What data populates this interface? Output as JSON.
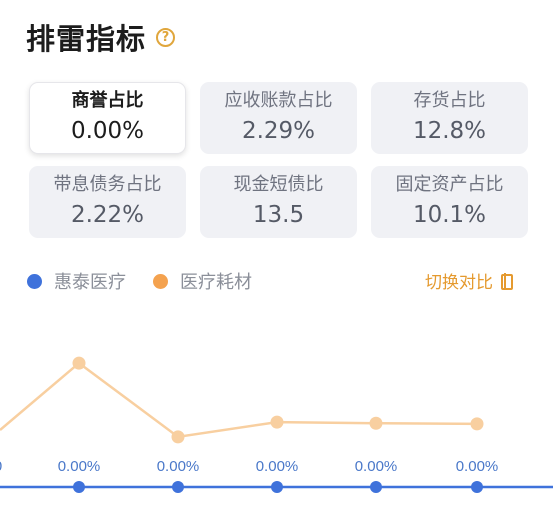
{
  "header": {
    "title": "排雷指标",
    "help_icon": "?"
  },
  "cards": [
    {
      "label": "商誉占比",
      "value": "0.00%"
    },
    {
      "label": "应收账款占比",
      "value": "2.29%"
    },
    {
      "label": "存货占比",
      "value": "12.8%"
    },
    {
      "label": "带息债务占比",
      "value": "2.22%"
    },
    {
      "label": "现金短债比",
      "value": "13.5"
    },
    {
      "label": "固定资产占比",
      "value": "10.1%"
    }
  ],
  "legend": [
    {
      "name": "惠泰医疗",
      "color": "#3f72db"
    },
    {
      "name": "医疗耗材",
      "color": "#f4a24f"
    }
  ],
  "switch_label": "切换对比",
  "chart_data": {
    "type": "line",
    "series": [
      {
        "name": "惠泰医疗",
        "values": [
          0,
          0,
          0,
          0,
          0,
          0
        ],
        "labels": [
          "0",
          "0.00%",
          "0.00%",
          "0.00%",
          "0.00%",
          "0.00%"
        ],
        "color": "#3f72db"
      },
      {
        "name": "医疗耗材",
        "values": [
          null,
          2.1,
          0.85,
          1.1,
          1.08,
          1.07
        ],
        "color": "#f8cfa0"
      }
    ]
  }
}
